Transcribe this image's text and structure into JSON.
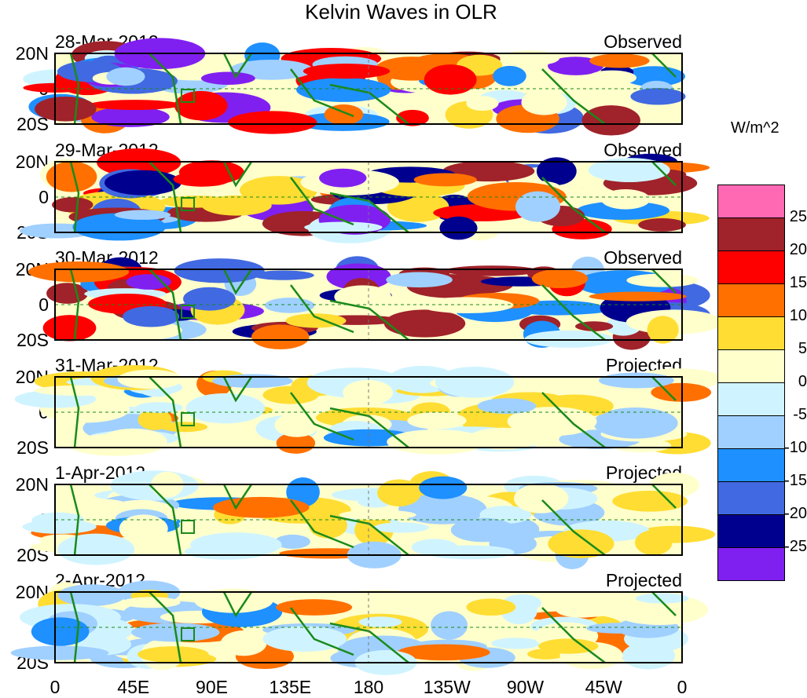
{
  "title": "Kelvin Waves in OLR",
  "units": "W/m^2",
  "panels": [
    {
      "date": "28-Mar-2012",
      "type": "Observed"
    },
    {
      "date": "29-Mar-2012",
      "type": "Observed"
    },
    {
      "date": "30-Mar-2012",
      "type": "Observed"
    },
    {
      "date": "31-Mar-2012",
      "type": "Projected"
    },
    {
      "date": "1-Apr-2012",
      "type": "Projected"
    },
    {
      "date": "2-Apr-2012",
      "type": "Projected"
    }
  ],
  "y_ticks": [
    "20N",
    "0",
    "20S"
  ],
  "x_ticks": [
    "0",
    "45E",
    "90E",
    "135E",
    "180",
    "135W",
    "90W",
    "45W",
    "0"
  ],
  "colorbar": {
    "colors": [
      "#ff69b4",
      "#a0222a",
      "#ff0000",
      "#ff7000",
      "#ffdd33",
      "#ffffcc",
      "#d0f4ff",
      "#a0d0ff",
      "#1e90ff",
      "#4169e1",
      "#00008f",
      "#8020f0"
    ],
    "labels": [
      "25",
      "20",
      "15",
      "10",
      "5",
      "0",
      "-5",
      "-10",
      "-15",
      "-20",
      "-25"
    ]
  }
}
